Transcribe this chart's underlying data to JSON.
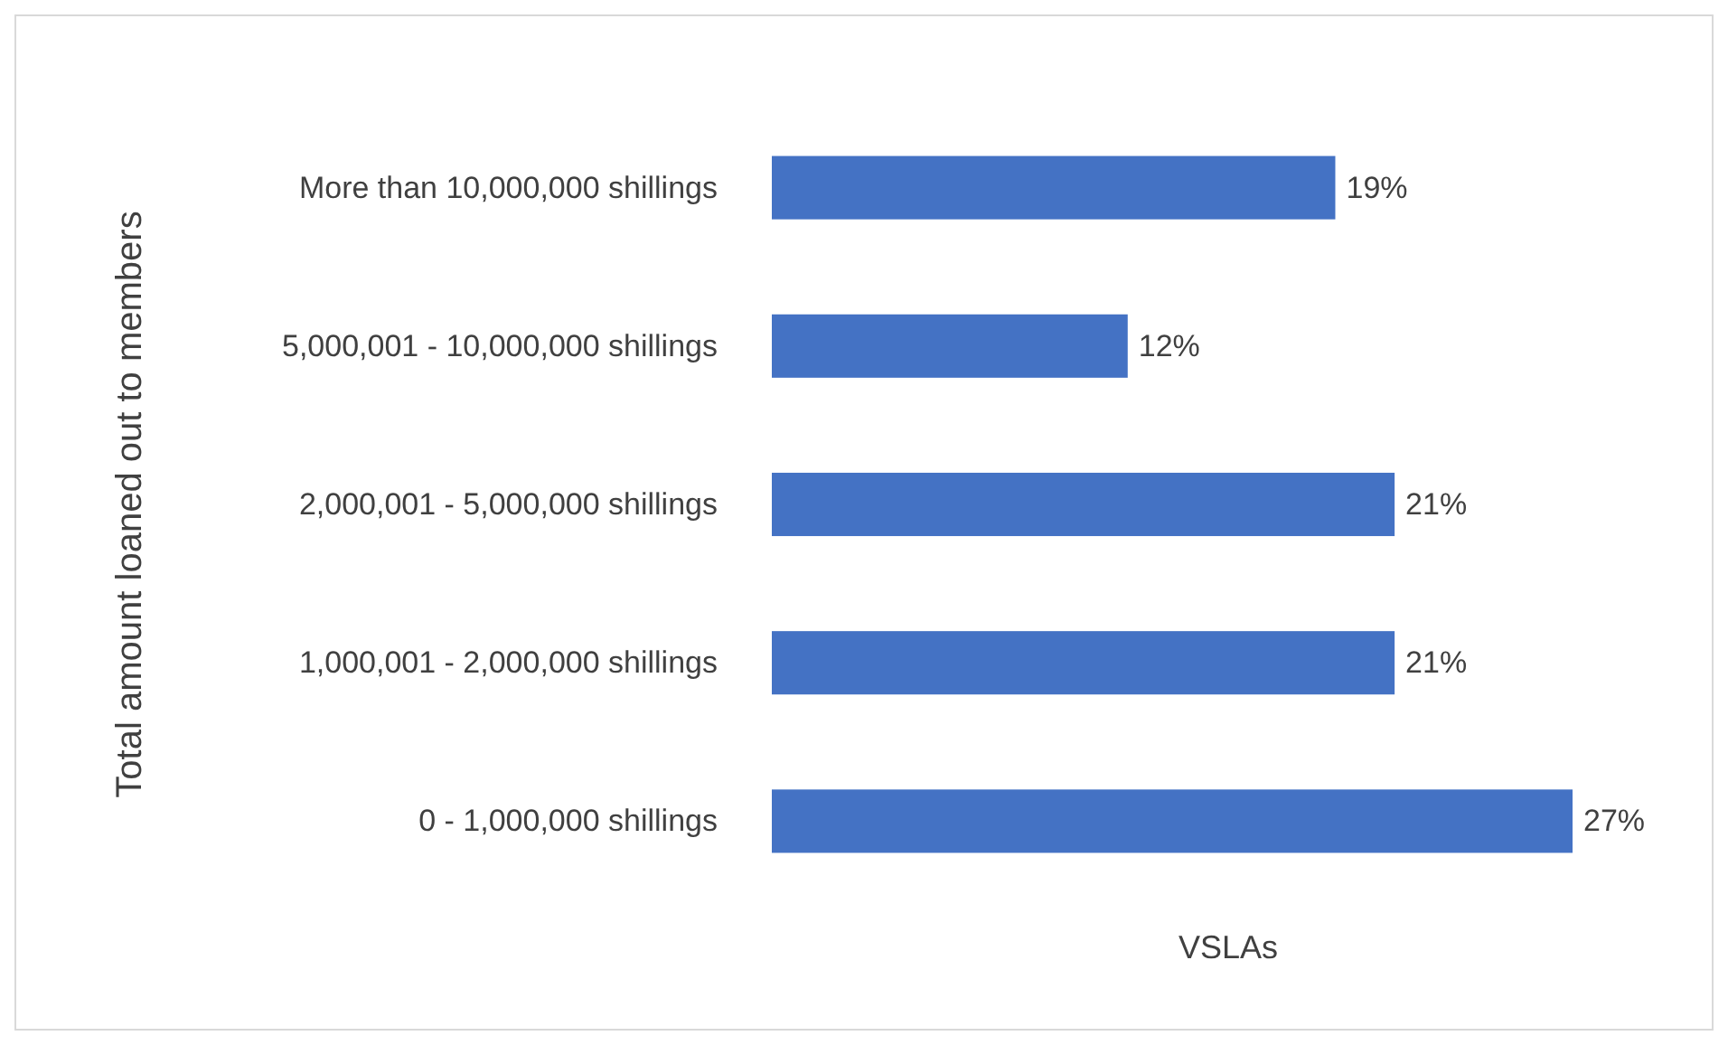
{
  "chart_data": {
    "type": "bar",
    "orientation": "horizontal",
    "xlabel": "VSLAs",
    "ylabel": "Total amount loaned out to members",
    "categories": [
      "More than 10,000,000 shillings",
      "5,000,001 - 10,000,000 shillings",
      "2,000,001 - 5,000,000 shillings",
      "1,000,001 - 2,000,000 shillings",
      "0 - 1,000,000 shillings"
    ],
    "values": [
      19,
      12,
      21,
      21,
      27
    ],
    "value_labels": [
      "19%",
      "12%",
      "21%",
      "21%",
      "27%"
    ],
    "color": "#4472c4"
  }
}
